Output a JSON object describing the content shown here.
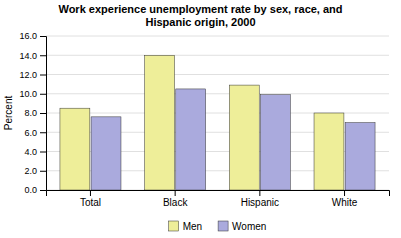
{
  "chart_data": {
    "type": "bar",
    "title": "Work experience unemployment rate by sex, race, and\nHispanic origin, 2000",
    "categories": [
      "Total",
      "Black",
      "Hispanic",
      "White"
    ],
    "series": [
      {
        "name": "Men",
        "color": "#EEEE99",
        "values": [
          8.5,
          14.0,
          10.9,
          8.0
        ]
      },
      {
        "name": "Women",
        "color": "#AAAADD",
        "values": [
          7.6,
          10.5,
          9.9,
          7.0
        ]
      }
    ],
    "ylabel": "Percent",
    "ylim": [
      0,
      16.0
    ],
    "yticks": [
      {
        "value": 0.0,
        "label": "0.0"
      },
      {
        "value": 2.0,
        "label": "2.0"
      },
      {
        "value": 4.0,
        "label": "4.0"
      },
      {
        "value": 6.0,
        "label": "6.0"
      },
      {
        "value": 8.0,
        "label": "8.0"
      },
      {
        "value": 10.0,
        "label": "10.0"
      },
      {
        "value": 12.0,
        "label": "12.0"
      },
      {
        "value": 14.0,
        "label": "14.0"
      },
      {
        "value": 16.0,
        "label": "16.0"
      }
    ],
    "grid": true,
    "legend": "bottom"
  }
}
